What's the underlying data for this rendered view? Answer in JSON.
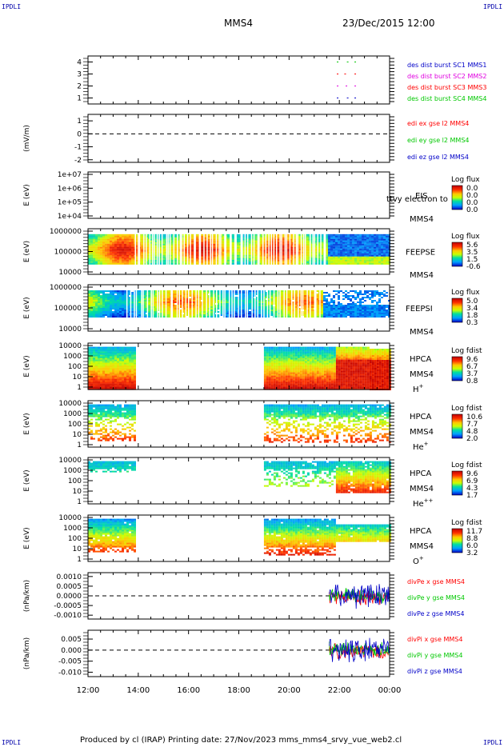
{
  "corners": {
    "tl": "IPDLI",
    "tr": "IPDLI",
    "bl": "IPDLI",
    "br": "IPDLI"
  },
  "header": {
    "spacecraft": "MMS4",
    "date": "23/Dec/2015 12:00"
  },
  "footer": "Produced by cl (IRAP)   Printing date: 27/Nov/2023   mms_mms4_srvy_vue_web2.cl",
  "time_axis": {
    "ticks": [
      "12:00",
      "14:00",
      "16:00",
      "18:00",
      "20:00",
      "22:00",
      "00:00"
    ]
  },
  "colors": {
    "red": "#ff0000",
    "green": "#00c800",
    "blue": "#0000c8",
    "magenta": "#e000e0"
  },
  "chart_data": [
    {
      "type": "scatter",
      "id": "burst",
      "ylabel": "",
      "ylim": [
        0.5,
        4.5
      ],
      "yticks": [
        "1",
        "2",
        "3",
        "4"
      ],
      "legend": [
        {
          "text": "des dist burst SC1 MMS1",
          "color": "#0000c8"
        },
        {
          "text": "des dist burst SC2 MMS2",
          "color": "#e000e0"
        },
        {
          "text": "des dist burst SC3 MMS3",
          "color": "#ff0000"
        },
        {
          "text": "des dist burst SC4 MMS4",
          "color": "#00c800"
        }
      ],
      "segments": [
        {
          "level": 4,
          "color": "#00c800",
          "t": [
            [
              21.9,
              22.0
            ],
            [
              22.3,
              22.4
            ],
            [
              22.6,
              22.7
            ]
          ]
        },
        {
          "level": 3,
          "color": "#ff0000",
          "t": [
            [
              21.9,
              22.0
            ],
            [
              22.2,
              22.3
            ],
            [
              22.6,
              22.7
            ]
          ]
        },
        {
          "level": 2,
          "color": "#e000e0",
          "t": [
            [
              21.9,
              22.0
            ],
            [
              22.25,
              22.35
            ],
            [
              22.6,
              22.7
            ]
          ]
        },
        {
          "level": 1,
          "color": "#0000c8",
          "t": [
            [
              21.9,
              22.0
            ],
            [
              22.3,
              22.4
            ],
            [
              22.6,
              22.7
            ]
          ]
        }
      ]
    },
    {
      "type": "line",
      "id": "edi",
      "ylabel": "(mV/m)",
      "ylim": [
        -2.2,
        1.5
      ],
      "yticks": [
        "1",
        "0",
        "-1",
        "-2"
      ],
      "legend": [
        {
          "text": "edi ex gse l2 MMS4",
          "color": "#ff0000"
        },
        {
          "text": "edi ey gse l2 MMS4",
          "color": "#00c800"
        },
        {
          "text": "edi ez gse l2 MMS4",
          "color": "#0000c8"
        }
      ]
    },
    {
      "type": "heatmap",
      "id": "eis",
      "ylabel": "E (eV)",
      "yticks": [
        "1e+07",
        "1e+06",
        "1e+05",
        "1e+04"
      ],
      "label": [
        "EIS"
      ],
      "overlay": "ttvy electron to",
      "sc": "MMS4",
      "colorbar": {
        "title": "Log flux",
        "ticks": [
          "0.0",
          "0.0",
          "0.0",
          "0.0"
        ]
      }
    },
    {
      "type": "heatmap",
      "id": "feepse",
      "ylabel": "E (eV)",
      "yticks": [
        "1000000",
        "100000",
        "10000"
      ],
      "label": [
        "FEEPSE"
      ],
      "sc": "MMS4",
      "colorbar": {
        "title": "Log flux",
        "ticks": [
          "5.6",
          "3.5",
          "1.5",
          "-0.6"
        ]
      }
    },
    {
      "type": "heatmap",
      "id": "feepsi",
      "ylabel": "E (eV)",
      "yticks": [
        "1000000",
        "100000",
        "10000"
      ],
      "label": [
        "FEEPSI"
      ],
      "sc": "MMS4",
      "colorbar": {
        "title": "Log flux",
        "ticks": [
          "5.0",
          "3.4",
          "1.8",
          "0.3"
        ]
      }
    },
    {
      "type": "heatmap",
      "id": "hpca_h",
      "ylabel": "E (eV)",
      "yticks": [
        "10000",
        "1000",
        "100",
        "10",
        "1"
      ],
      "label": [
        "HPCA",
        "MMS4"
      ],
      "species": "H+",
      "colorbar": {
        "title": "Log fdist",
        "ticks": [
          "9.6",
          "6.7",
          "3.7",
          "0.8"
        ]
      }
    },
    {
      "type": "heatmap",
      "id": "hpca_he",
      "ylabel": "E (eV)",
      "yticks": [
        "10000",
        "1000",
        "100",
        "10",
        "1"
      ],
      "label": [
        "HPCA",
        "MMS4"
      ],
      "species": "He+",
      "colorbar": {
        "title": "Log fdist",
        "ticks": [
          "10.6",
          "7.7",
          "4.8",
          "2.0"
        ]
      }
    },
    {
      "type": "heatmap",
      "id": "hpca_hepp",
      "ylabel": "E (eV)",
      "yticks": [
        "10000",
        "1000",
        "100",
        "10",
        "1"
      ],
      "label": [
        "HPCA",
        "MMS4"
      ],
      "species": "He++",
      "colorbar": {
        "title": "Log fdist",
        "ticks": [
          "9.6",
          "6.9",
          "4.3",
          "1.7"
        ]
      }
    },
    {
      "type": "heatmap",
      "id": "hpca_o",
      "ylabel": "E (eV)",
      "yticks": [
        "10000",
        "1000",
        "100",
        "10",
        "1"
      ],
      "label": [
        "HPCA",
        "MMS4"
      ],
      "species": "O+",
      "colorbar": {
        "title": "Log fdist",
        "ticks": [
          "11.7",
          "8.8",
          "6.0",
          "3.2"
        ]
      }
    },
    {
      "type": "line",
      "id": "divpe",
      "ylabel": "(nPa/km)",
      "ylim": [
        -0.0012,
        0.0012
      ],
      "yticks": [
        "0.0010",
        "0.0005",
        "0.0000",
        "-0.0005",
        "-0.0010"
      ],
      "legend": [
        {
          "text": "divPe x gse MMS4",
          "color": "#ff0000"
        },
        {
          "text": "divPe y gse MMS4",
          "color": "#00c800"
        },
        {
          "text": "divPe z gse MMS4",
          "color": "#0000c8"
        }
      ]
    },
    {
      "type": "line",
      "id": "divpi",
      "ylabel": "(nPa/km)",
      "ylim": [
        -0.012,
        0.009
      ],
      "yticks": [
        "0.005",
        "0.000",
        "-0.005",
        "-0.010"
      ],
      "legend": [
        {
          "text": "divPi x gse MMS4",
          "color": "#ff0000"
        },
        {
          "text": "divPi y gse MMS4",
          "color": "#00c800"
        },
        {
          "text": "divPi z gse MMS4",
          "color": "#0000c8"
        }
      ]
    }
  ]
}
